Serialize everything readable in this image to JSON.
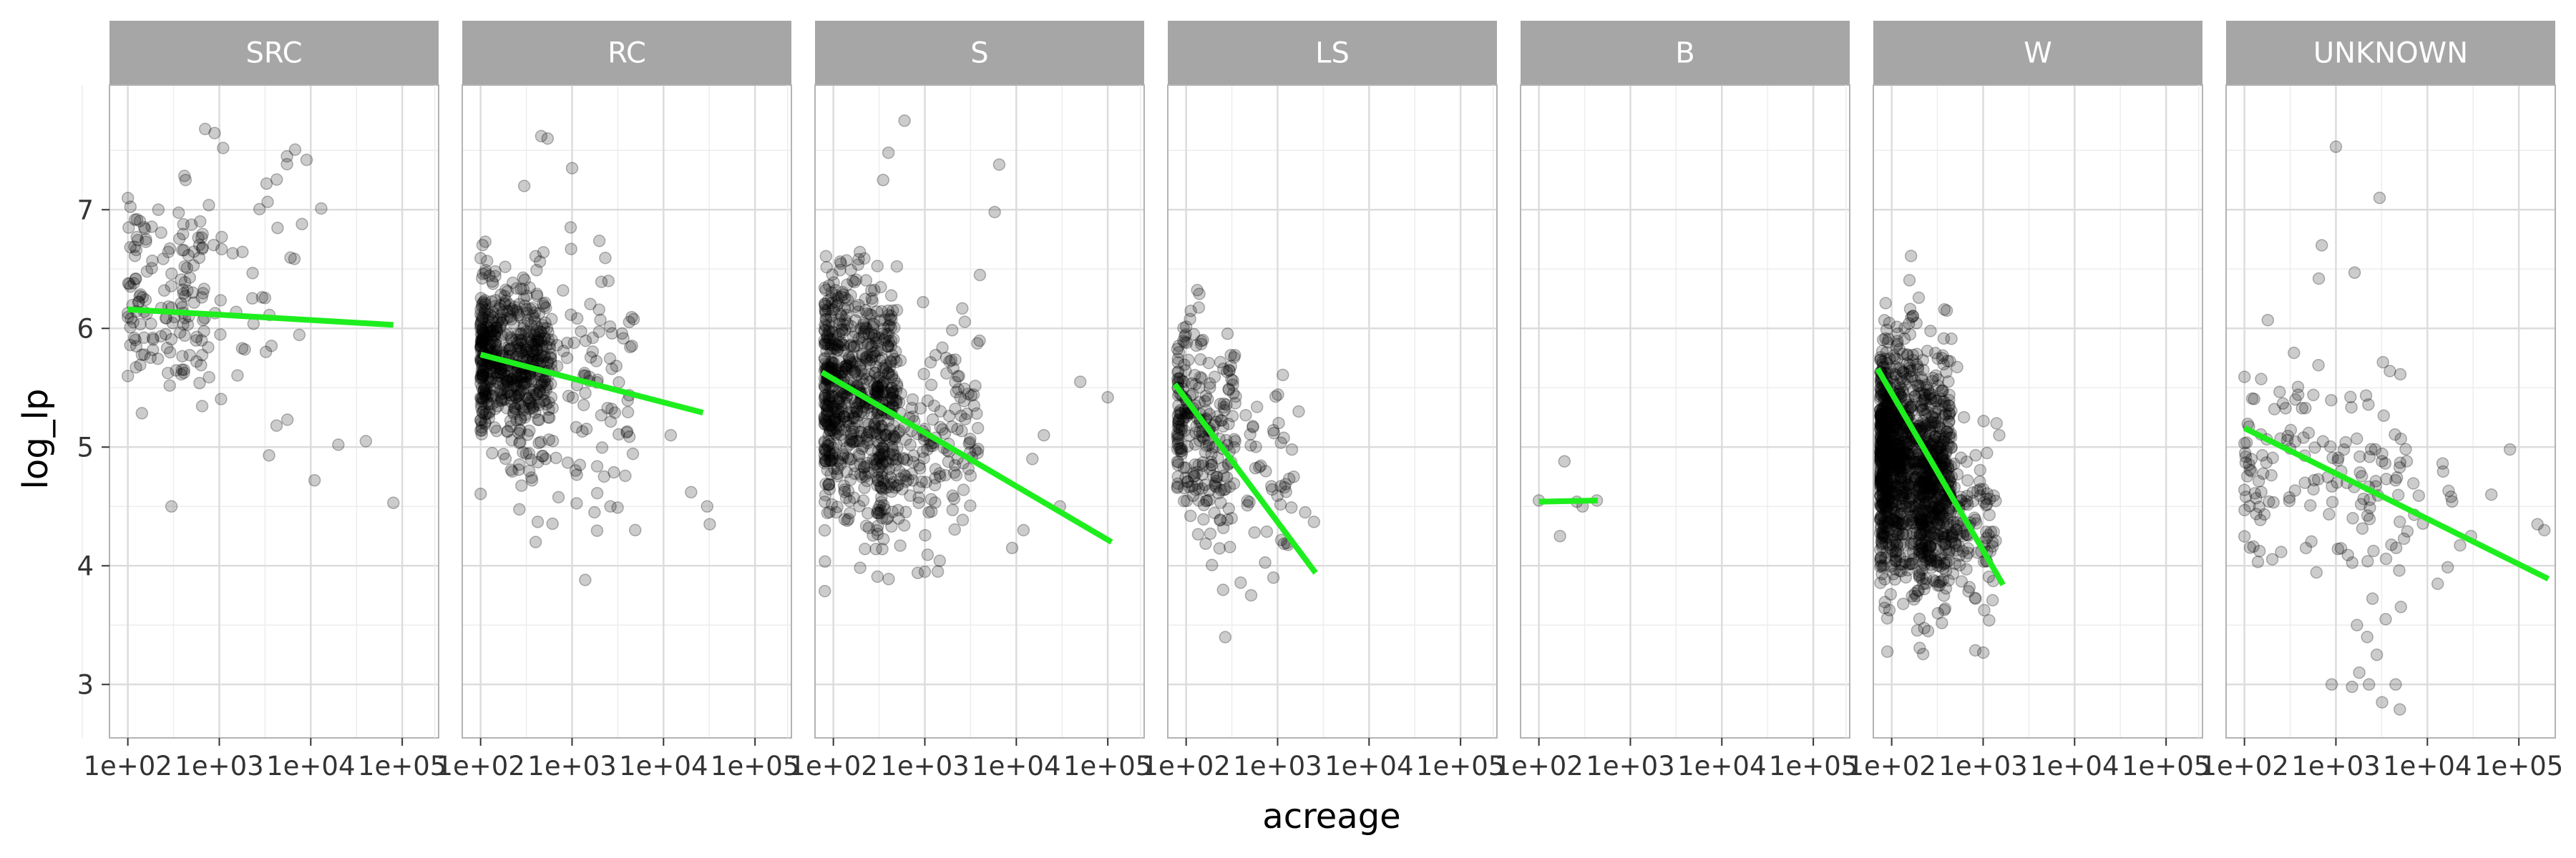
{
  "chart_data": {
    "type": "scatter",
    "xlabel": "acreage",
    "ylabel": "log_lp",
    "x_scale": "log10",
    "xlim": [
      63,
      250000
    ],
    "ylim": [
      2.55,
      8.05
    ],
    "x_ticks": [
      {
        "value": 100,
        "label": "1e+02"
      },
      {
        "value": 1000,
        "label": "1e+03"
      },
      {
        "value": 10000,
        "label": "1e+04"
      },
      {
        "value": 100000,
        "label": "1e+05"
      }
    ],
    "y_ticks": [
      {
        "value": 3,
        "label": "3"
      },
      {
        "value": 4,
        "label": "4"
      },
      {
        "value": 5,
        "label": "5"
      },
      {
        "value": 6,
        "label": "6"
      },
      {
        "value": 7,
        "label": "7"
      }
    ],
    "grid": true,
    "point_color": "#000000",
    "point_alpha": 0.2,
    "fit_color": "#1eee1e",
    "strip_color": "#a6a6a6",
    "panels": [
      {
        "name": "SRC",
        "fit": {
          "x": [
            100,
            80000
          ],
          "y": [
            6.16,
            6.03
          ]
        },
        "clusters": [
          {
            "n": 120,
            "x_range": [
              100,
              700
            ],
            "y_mean": 6.25,
            "y_sd": 0.4
          },
          {
            "n": 60,
            "x_range": [
              400,
              9000
            ],
            "y_mean": 6.45,
            "y_sd": 0.55
          }
        ],
        "points": [
          [
            700,
            7.68
          ],
          [
            1100,
            7.52
          ],
          [
            5500,
            7.45
          ],
          [
            9000,
            7.42
          ],
          [
            13000,
            7.01
          ],
          [
            300,
            4.5
          ],
          [
            20000,
            5.02
          ],
          [
            40000,
            5.05
          ],
          [
            80000,
            4.53
          ],
          [
            11000,
            4.72
          ],
          [
            3500,
            4.93
          ]
        ]
      },
      {
        "name": "RC",
        "fit": {
          "x": [
            100,
            27000
          ],
          "y": [
            5.78,
            5.29
          ]
        },
        "clusters": [
          {
            "n": 550,
            "x_range": [
              100,
              600
            ],
            "y_mean": 5.72,
            "y_sd": 0.32
          },
          {
            "n": 150,
            "x_range": [
              250,
              5000
            ],
            "y_mean": 5.45,
            "y_sd": 0.55
          }
        ],
        "points": [
          [
            460,
            7.62
          ],
          [
            540,
            7.6
          ],
          [
            1000,
            7.35
          ],
          [
            300,
            7.2
          ],
          [
            20000,
            4.62
          ],
          [
            30000,
            4.5
          ],
          [
            32000,
            4.35
          ],
          [
            400,
            4.2
          ],
          [
            12000,
            5.1
          ],
          [
            2500,
            6.4
          ]
        ]
      },
      {
        "name": "S",
        "fit": {
          "x": [
            75,
            110000
          ],
          "y": [
            5.63,
            4.2
          ]
        },
        "clusters": [
          {
            "n": 650,
            "x_range": [
              80,
              500
            ],
            "y_mean": 5.45,
            "y_sd": 0.5
          },
          {
            "n": 250,
            "x_range": [
              300,
              4000
            ],
            "y_mean": 5.0,
            "y_sd": 0.45
          }
        ],
        "points": [
          [
            600,
            7.75
          ],
          [
            400,
            7.48
          ],
          [
            350,
            7.25
          ],
          [
            6500,
            7.38
          ],
          [
            5800,
            6.98
          ],
          [
            4000,
            6.45
          ],
          [
            1000,
            3.95
          ],
          [
            9000,
            4.15
          ],
          [
            12000,
            4.3
          ],
          [
            30000,
            4.5
          ],
          [
            50000,
            5.55
          ],
          [
            100000,
            5.42
          ],
          [
            20000,
            5.1
          ],
          [
            15000,
            4.9
          ]
        ]
      },
      {
        "name": "LS",
        "fit": {
          "x": [
            75,
            2600
          ],
          "y": [
            5.53,
            3.94
          ]
        },
        "clusters": [
          {
            "n": 220,
            "x_range": [
              80,
              350
            ],
            "y_mean": 5.2,
            "y_sd": 0.45
          },
          {
            "n": 80,
            "x_range": [
              150,
              1500
            ],
            "y_mean": 4.6,
            "y_sd": 0.4
          }
        ],
        "points": [
          [
            2500,
            4.37
          ],
          [
            1700,
            5.3
          ],
          [
            2000,
            4.45
          ],
          [
            1500,
            4.75
          ],
          [
            900,
            3.9
          ],
          [
            60,
            5.9
          ]
        ]
      },
      {
        "name": "B",
        "fit": {
          "x": [
            100,
            440
          ],
          "y": [
            4.54,
            4.55
          ]
        },
        "clusters": [],
        "points": [
          [
            100,
            4.55
          ],
          [
            190,
            4.88
          ],
          [
            170,
            4.25
          ],
          [
            260,
            4.54
          ],
          [
            430,
            4.55
          ],
          [
            300,
            4.5
          ]
        ]
      },
      {
        "name": "W",
        "fit": {
          "x": [
            70,
            1650
          ],
          "y": [
            5.66,
            3.84
          ]
        },
        "clusters": [
          {
            "n": 1200,
            "x_range": [
              75,
              450
            ],
            "y_mean": 4.9,
            "y_sd": 0.48
          },
          {
            "n": 300,
            "x_range": [
              200,
              1400
            ],
            "y_mean": 4.35,
            "y_sd": 0.35
          }
        ],
        "points": [
          [
            250,
            3.45
          ],
          [
            320,
            3.6
          ],
          [
            1400,
            5.2
          ],
          [
            1500,
            5.1
          ],
          [
            1100,
            4.95
          ],
          [
            400,
            6.15
          ]
        ]
      },
      {
        "name": "UNKNOWN",
        "fit": {
          "x": [
            100,
            210000
          ],
          "y": [
            5.16,
            3.89
          ]
        },
        "clusters": [
          {
            "n": 120,
            "x_range": [
              100,
              6000
            ],
            "y_mean": 4.85,
            "y_sd": 0.45
          },
          {
            "n": 40,
            "x_range": [
              1000,
              30000
            ],
            "y_mean": 4.55,
            "y_sd": 0.35
          }
        ],
        "points": [
          [
            1000,
            7.53
          ],
          [
            3000,
            7.1
          ],
          [
            700,
            6.7
          ],
          [
            650,
            6.42
          ],
          [
            1600,
            6.47
          ],
          [
            180,
            6.07
          ],
          [
            1500,
            2.98
          ],
          [
            2300,
            3.0
          ],
          [
            1800,
            3.1
          ],
          [
            2800,
            3.25
          ],
          [
            3200,
            2.85
          ],
          [
            5000,
            2.79
          ],
          [
            4500,
            3.0
          ],
          [
            1700,
            3.5
          ],
          [
            2200,
            3.4
          ],
          [
            3500,
            3.55
          ],
          [
            900,
            3.0
          ],
          [
            160000,
            4.35
          ],
          [
            190000,
            4.3
          ],
          [
            80000,
            4.98
          ],
          [
            50000,
            4.6
          ],
          [
            30000,
            4.25
          ]
        ]
      }
    ]
  }
}
